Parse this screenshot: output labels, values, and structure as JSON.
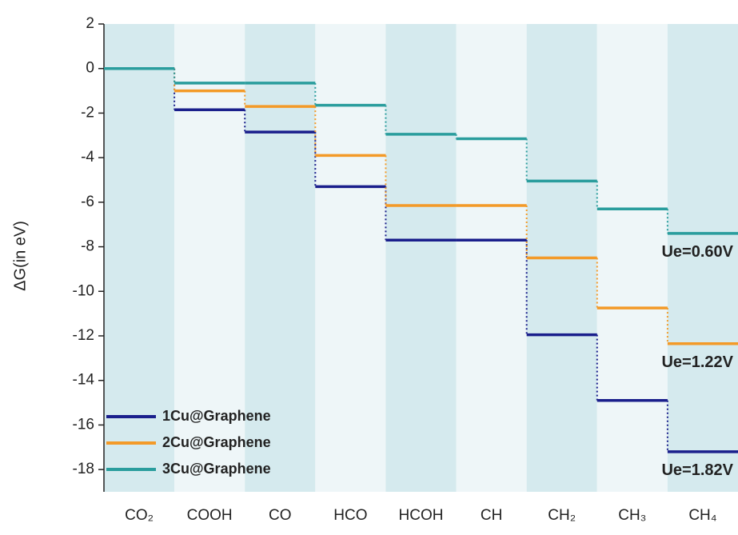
{
  "chart_data": {
    "type": "energy-step",
    "y_label": "ΔG(in eV)",
    "categories": [
      "CO₂",
      "COOH",
      "CO",
      "HCO",
      "HCOH",
      "CH",
      "CH₂",
      "CH₃",
      "CH₄"
    ],
    "series": [
      {
        "name": "1Cu@Graphene",
        "color": "#1a1f8c",
        "values": [
          0,
          -1.85,
          -2.85,
          -5.3,
          -7.7,
          -7.7,
          -11.95,
          -14.9,
          -17.2
        ],
        "annotation": "Ue=1.82V"
      },
      {
        "name": "2Cu@Graphene",
        "color": "#f39a28",
        "values": [
          0,
          -1.0,
          -1.7,
          -3.9,
          -6.15,
          -6.15,
          -8.5,
          -10.75,
          -12.35
        ],
        "annotation": "Ue=1.22V"
      },
      {
        "name": "3Cu@Graphene",
        "color": "#2a9d9d",
        "values": [
          0,
          -0.65,
          -0.65,
          -1.65,
          -2.95,
          -3.15,
          -5.05,
          -6.3,
          -7.4
        ],
        "annotation": "Ue=0.60V"
      }
    ],
    "ylim": [
      -19,
      2
    ],
    "yticks": [
      2,
      0,
      -2,
      -4,
      -6,
      -8,
      -10,
      -12,
      -14,
      -16,
      -18
    ],
    "band_colors": [
      "#d5eaee",
      "#eef6f8"
    ],
    "legend": "lower left"
  }
}
